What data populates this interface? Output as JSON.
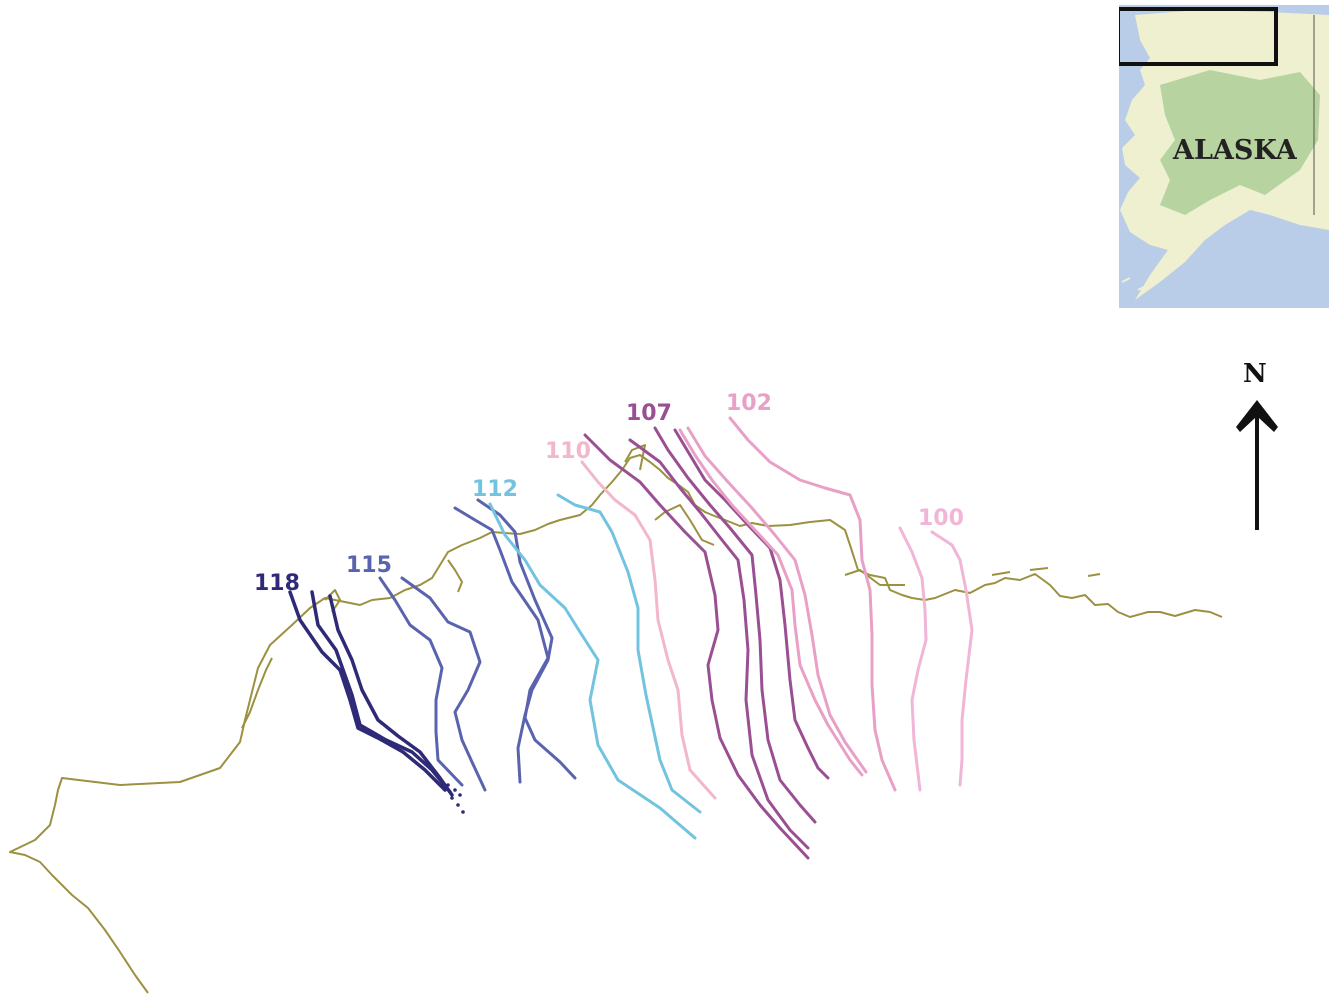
{
  "inset_map": {
    "region_label": "ALASKA",
    "colors": {
      "water": "#b9cce8",
      "land": "#eef0cf",
      "forest": "#b7d3a0",
      "frame": "#111111"
    }
  },
  "north_arrow": {
    "label": "N",
    "color": "#111111"
  },
  "coastline": {
    "color": "#9b9140"
  },
  "tracks": [
    {
      "label": "118",
      "color": "#2e2a78"
    },
    {
      "label": "115",
      "color": "#5a63ad"
    },
    {
      "label": "112",
      "color": "#72c3df"
    },
    {
      "label": "110",
      "color": "#f3b7ca"
    },
    {
      "label": "107",
      "color": "#9a4f93"
    },
    {
      "label": "102",
      "color": "#e9a0c7"
    },
    {
      "label": "100",
      "color": "#f1b5d7"
    }
  ]
}
